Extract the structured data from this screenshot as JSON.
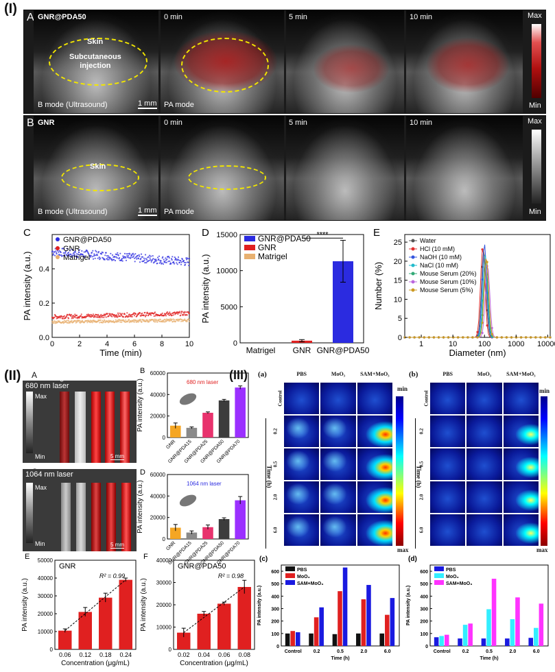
{
  "section_I": {
    "label": "(I)",
    "rowA": {
      "letter": "A",
      "tiles": [
        "GNR@PDA50",
        "0 min",
        "5 min",
        "10 min"
      ],
      "skin": "Skin",
      "injection": "Subcutaneous\ninjection",
      "bmode": "B mode (Ultrasound)",
      "pamode": "PA mode",
      "scale": "1 mm",
      "cbar_max": "Max",
      "cbar_min": "Min"
    },
    "rowB": {
      "letter": "B",
      "tiles": [
        "GNR",
        "0 min",
        "5 min",
        "10 min"
      ],
      "skin": "Skin",
      "bmode": "B mode (Ultrasound)",
      "pamode": "PA mode",
      "scale": "1 mm",
      "cbar_max": "Max",
      "cbar_min": "Min"
    }
  },
  "section_II": {
    "label": "(II)",
    "A": {
      "letter": "A",
      "title": "680 nm laser",
      "lanes": [
        "GNR",
        "GNR@PDA15",
        "GNR@PDA25",
        "GNR@PDA50",
        "GNR@PDA70"
      ],
      "max": "Max",
      "min": "Min",
      "scale": "5 mm"
    },
    "C": {
      "letter": "C",
      "title": "1064 nm laser",
      "lanes": [
        "GNR",
        "GNR@PDA15",
        "GNR@PDA25",
        "GNR@PDA50",
        "GNR@PDA70"
      ],
      "max": "Max",
      "min": "Min",
      "scale": "5 mm"
    }
  },
  "section_III": {
    "label": "(III)",
    "a": {
      "letter": "(a)",
      "cols": [
        "PBS",
        "MoO₃",
        "SAM+MoO₃"
      ],
      "rows": [
        "Control",
        "0.2",
        "0.5",
        "2.0",
        "6.0"
      ],
      "axis": "Time (h)",
      "cmax": "min",
      "cmin": "max"
    },
    "b": {
      "letter": "(b)",
      "cols": [
        "PBS",
        "MoO₃",
        "SAM+MoO₃"
      ],
      "rows": [
        "Control",
        "0.2",
        "0.5",
        "2.0",
        "6.0"
      ],
      "axis": "Time (h)",
      "cmax": "min",
      "cmin": "max"
    }
  },
  "colors": {
    "blue": "#2b2be0",
    "red": "#e02020",
    "tan": "#e8b070",
    "orange": "#f5a623",
    "gray": "#8a8a8a",
    "pink": "#e8336d",
    "dark": "#3c3c3c",
    "purple": "#9b30ff",
    "cyan": "#29e0f0",
    "magenta": "#ff33ff"
  },
  "chart_data": [
    {
      "id": "C",
      "letter": "C",
      "type": "scatter",
      "xlabel": "Time (min)",
      "ylabel": "PA intensity (a.u.)",
      "xlim": [
        0,
        10
      ],
      "ylim": [
        0,
        0.6
      ],
      "xticks": [
        0,
        2,
        4,
        6,
        8,
        10
      ],
      "yticks": [
        0.0,
        0.2,
        0.4
      ],
      "series": [
        {
          "name": "GNR@PDA50",
          "color": "#2b2be0",
          "start": 0.5,
          "end": 0.44,
          "noise": 0.025
        },
        {
          "name": "GNR",
          "color": "#e02020",
          "start": 0.12,
          "end": 0.14,
          "noise": 0.012
        },
        {
          "name": "Matrigel",
          "color": "#e8b070",
          "start": 0.09,
          "end": 0.1,
          "noise": 0.008
        }
      ]
    },
    {
      "id": "D",
      "letter": "D",
      "type": "bar",
      "ylabel": "PA intensity (a.u.)",
      "ylim": [
        0,
        15000
      ],
      "yticks": [
        0,
        5000,
        10000,
        15000
      ],
      "categories": [
        "Matrigel",
        "GNR",
        "GNR@PDA50"
      ],
      "values": [
        0,
        300,
        11300
      ],
      "errors": [
        0,
        150,
        2900
      ],
      "bar_colors": [
        "#e8b070",
        "#e02020",
        "#2b2be0"
      ],
      "legend": [
        "GNR@PDA50",
        "GNR",
        "Matrigel"
      ],
      "significance": "****"
    },
    {
      "id": "E",
      "letter": "E",
      "type": "line",
      "xlabel": "Diameter (nm)",
      "ylabel": "Number (%)",
      "xscale": "log",
      "xlim": [
        0.3,
        12000
      ],
      "ylim": [
        0,
        27
      ],
      "xticks": [
        1,
        10,
        100,
        1000,
        10000
      ],
      "yticks": [
        0,
        5,
        10,
        15,
        20,
        25
      ],
      "series": [
        {
          "name": "Water",
          "color": "#555555",
          "peak": 95,
          "height": 23
        },
        {
          "name": "HCl (10 mM)",
          "color": "#e03030",
          "peak": 88,
          "height": 23.5
        },
        {
          "name": "NaOH (10 mM)",
          "color": "#3355dd",
          "peak": 100,
          "height": 24.5
        },
        {
          "name": "NaCl (10 mM)",
          "color": "#22bbcc",
          "peak": 105,
          "height": 22
        },
        {
          "name": "Mouse Serum (20%)",
          "color": "#33aa77",
          "peak": 110,
          "height": 20
        },
        {
          "name": "Mouse Serum (10%)",
          "color": "#bb66dd",
          "peak": 125,
          "height": 19
        },
        {
          "name": "Mouse Serum (5%)",
          "color": "#cc9922",
          "peak": 115,
          "height": 21
        }
      ]
    },
    {
      "id": "IIB",
      "letter": "B",
      "type": "bar",
      "ylabel": "PA intensity (a.u.)",
      "ylim": [
        0,
        60000
      ],
      "yticks": [
        0,
        20000,
        40000,
        60000
      ],
      "annotation": "680 nm laser",
      "categories": [
        "GNR",
        "GNR@PDA15",
        "GNR@PDA25",
        "GNR@PDA50",
        "GNR@PDA70"
      ],
      "values": [
        11000,
        9000,
        23000,
        34500,
        46500
      ],
      "errors": [
        2500,
        800,
        800,
        1000,
        1500
      ],
      "bar_colors": [
        "#f5a623",
        "#8a8a8a",
        "#e8336d",
        "#3c3c3c",
        "#9b30ff"
      ]
    },
    {
      "id": "IID",
      "letter": "D",
      "type": "bar",
      "ylabel": "PA intensity (a.u.)",
      "ylim": [
        0,
        60000
      ],
      "yticks": [
        0,
        20000,
        40000,
        60000
      ],
      "annotation": "1064 nm laser",
      "categories": [
        "GNR",
        "GNR@PDA15",
        "GNR@PDA25",
        "GNR@PDA50",
        "GNR@PDA70"
      ],
      "values": [
        10500,
        6000,
        11000,
        18500,
        36000
      ],
      "errors": [
        3000,
        1500,
        2000,
        1200,
        3500
      ],
      "bar_colors": [
        "#f5a623",
        "#8a8a8a",
        "#e8336d",
        "#3c3c3c",
        "#9b30ff"
      ]
    },
    {
      "id": "IIE",
      "letter": "E",
      "type": "bar",
      "title": "GNR",
      "xlabel": "Concentration (μg/mL)",
      "ylabel": "PA intensity (a.u.)",
      "ylim": [
        0,
        50000
      ],
      "yticks": [
        0,
        10000,
        20000,
        30000,
        40000,
        50000
      ],
      "categories": [
        "0.06",
        "0.12",
        "0.18",
        "0.24"
      ],
      "values": [
        10500,
        21000,
        29000,
        39000
      ],
      "errors": [
        1000,
        2500,
        2500,
        1000
      ],
      "r2": "R² = 0.99",
      "bar_color": "#e02020"
    },
    {
      "id": "IIF",
      "letter": "F",
      "type": "bar",
      "title": "GNR@PDA50",
      "xlabel": "Concentration (μg/mL)",
      "ylabel": "PA intensity (a.u.)",
      "ylim": [
        0,
        40000
      ],
      "yticks": [
        0,
        10000,
        20000,
        30000,
        40000
      ],
      "categories": [
        "0.02",
        "0.04",
        "0.06",
        "0.08"
      ],
      "values": [
        7500,
        16000,
        20500,
        28000
      ],
      "errors": [
        2000,
        1000,
        700,
        3000
      ],
      "r2": "R² = 0.98",
      "bar_color": "#e02020"
    },
    {
      "id": "IIIc",
      "letter": "(c)",
      "type": "bar",
      "xlabel": "Time (h)",
      "ylabel": "PA intensity (a.u.)",
      "ylim": [
        0,
        650
      ],
      "yticks": [
        0,
        100,
        200,
        300,
        400,
        500,
        600
      ],
      "categories": [
        "Control",
        "0.2",
        "0.5",
        "2.0",
        "6.0"
      ],
      "series": [
        {
          "name": "PBS",
          "color": "#111111",
          "values": [
            100,
            100,
            95,
            100,
            100
          ]
        },
        {
          "name": "MoO₃",
          "color": "#e02020",
          "values": [
            120,
            230,
            440,
            375,
            250
          ]
        },
        {
          "name": "SAM+MoO₃",
          "color": "#1a1ae0",
          "values": [
            110,
            310,
            630,
            490,
            385
          ]
        }
      ]
    },
    {
      "id": "IIId",
      "letter": "(d)",
      "type": "bar",
      "xlabel": "Time (h)",
      "ylabel": "PA intensity (a.u.)",
      "ylim": [
        0,
        650
      ],
      "yticks": [
        0,
        100,
        200,
        300,
        400,
        500,
        600
      ],
      "categories": [
        "Control",
        "0.2",
        "0.5",
        "2.0",
        "6.0"
      ],
      "series": [
        {
          "name": "PBS",
          "color": "#1a1ae0",
          "values": [
            70,
            60,
            60,
            60,
            65
          ]
        },
        {
          "name": "MoO₃",
          "color": "#33eeff",
          "values": [
            80,
            170,
            295,
            215,
            145
          ]
        },
        {
          "name": "SAM+MoO₃",
          "color": "#ff33ff",
          "values": [
            90,
            180,
            540,
            390,
            340
          ]
        }
      ]
    }
  ]
}
